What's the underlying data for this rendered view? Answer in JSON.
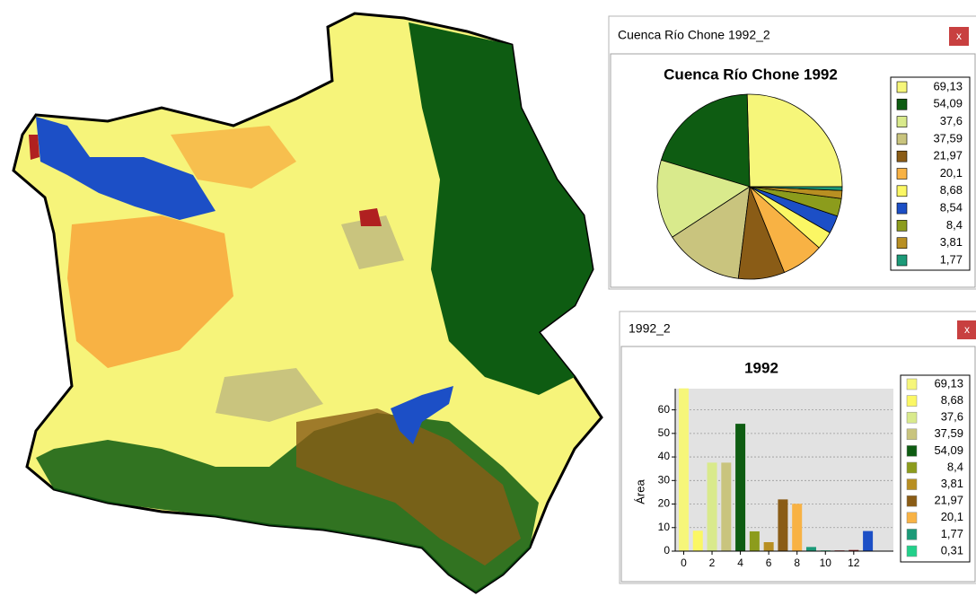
{
  "windows": [
    {
      "title": "Cuenca Río Chone 1992_2",
      "close": "x"
    },
    {
      "title": "1992_2",
      "close": "x"
    }
  ],
  "chart_data": [
    {
      "type": "pie",
      "title": "Cuenca Río Chone 1992",
      "values": [
        69.13,
        54.09,
        37.6,
        37.59,
        21.97,
        20.1,
        8.68,
        8.54,
        8.4,
        3.81,
        1.77
      ],
      "value_labels": [
        "69,13",
        "54,09",
        "37,6",
        "37,59",
        "21,97",
        "20,1",
        "8,68",
        "8,54",
        "8,4",
        "3,81",
        "1,77"
      ],
      "colors": [
        "#f6f67a",
        "#0e5c12",
        "#d9ea8c",
        "#c9c47e",
        "#8a5c16",
        "#f8b244",
        "#fbf764",
        "#1c4fc6",
        "#8c9c1c",
        "#b88f22",
        "#1c9a78"
      ]
    },
    {
      "type": "bar",
      "title": "1992",
      "y_label": "Área",
      "x": [
        0,
        1,
        2,
        3,
        4,
        5,
        6,
        7,
        8,
        9,
        10,
        11,
        12,
        13
      ],
      "values": [
        69.13,
        8.68,
        37.6,
        37.59,
        54.09,
        8.4,
        3.81,
        21.97,
        20.1,
        1.77,
        0.31,
        0.3,
        0.5,
        8.54
      ],
      "value_labels": [
        "69,13",
        "8,68",
        "37,6",
        "37,59",
        "54,09",
        "8,4",
        "3,81",
        "21,97",
        "20,1",
        "1,77",
        "0,31",
        null,
        null,
        null
      ],
      "colors": [
        "#f6f67a",
        "#fbf764",
        "#d9ea8c",
        "#c9c47e",
        "#0e5c12",
        "#8c9c1c",
        "#b88f22",
        "#8a5c16",
        "#f8b244",
        "#1c9a78",
        "#22d08a",
        "#a02020",
        "#8a2020",
        "#1c4fc6"
      ],
      "xlim": [
        -0.6,
        14.8
      ],
      "ylim": [
        0,
        69
      ],
      "xticks": [
        0,
        2,
        4,
        6,
        8,
        10,
        12
      ],
      "yticks": [
        0,
        10,
        20,
        30,
        40,
        50,
        60
      ],
      "grid": true
    }
  ]
}
